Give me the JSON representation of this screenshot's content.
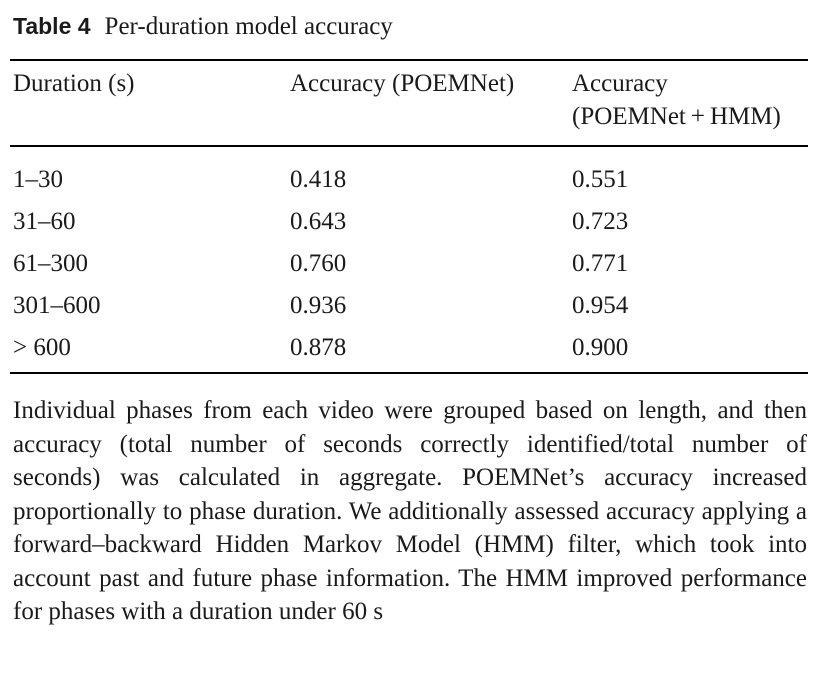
{
  "caption": {
    "label": "Table 4",
    "title": "Per-duration model accuracy"
  },
  "table": {
    "headers": {
      "duration": "Duration (s)",
      "accuracy_poemnet": "Accuracy (POEMNet)",
      "accuracy_hmm_line1": "Accuracy",
      "accuracy_hmm_line2": "(POEMNet + HMM)"
    },
    "rows": [
      {
        "duration": "1–30",
        "poemnet": "0.418",
        "poemnet_hmm": "0.551"
      },
      {
        "duration": "31–60",
        "poemnet": "0.643",
        "poemnet_hmm": "0.723"
      },
      {
        "duration": "61–300",
        "poemnet": "0.760",
        "poemnet_hmm": "0.771"
      },
      {
        "duration": "301–600",
        "poemnet": "0.936",
        "poemnet_hmm": "0.954"
      },
      {
        "duration": "> 600",
        "poemnet": "0.878",
        "poemnet_hmm": "0.900"
      }
    ]
  },
  "footnote": "Individual phases from each video were grouped based on length, and then accuracy (total number of seconds correctly identified/total num­ber of seconds) was calculated in aggregate. POEMNet’s accuracy increased proportionally to phase duration. We additionally assessed accuracy applying a forward–backward Hidden Markov Model (HMM) filter, which took into account past and future phase infor­mation. The HMM improved performance for phases with a duration under 60 s"
}
